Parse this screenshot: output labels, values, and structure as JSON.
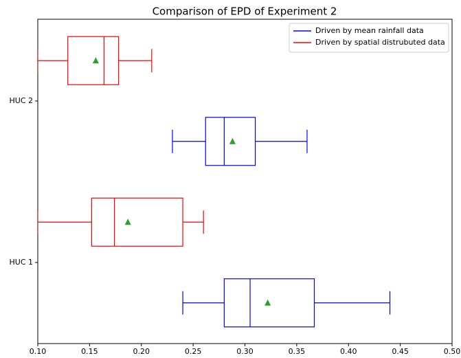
{
  "chart_data": {
    "type": "boxplot",
    "title": "Comparison of EPD of Experiment 2",
    "categories": [
      "HUC 1",
      "HUC 2"
    ],
    "series": [
      {
        "name": "Driven by mean rainfall data",
        "color": "#0000ff",
        "values": [
          {
            "whislo": 0.24,
            "q1": 0.28,
            "med": 0.305,
            "q3": 0.367,
            "whishi": 0.44,
            "mean": 0.322
          },
          {
            "whislo": 0.23,
            "q1": 0.262,
            "med": 0.28,
            "q3": 0.31,
            "whishi": 0.36,
            "mean": 0.288
          }
        ]
      },
      {
        "name": "Driven by spatial distrubuted data",
        "color": "#ff0000",
        "values": [
          {
            "whislo": 0.1,
            "q1": 0.152,
            "med": 0.174,
            "q3": 0.24,
            "whishi": 0.26,
            "mean": 0.187
          },
          {
            "whislo": 0.1,
            "q1": 0.129,
            "med": 0.164,
            "q3": 0.178,
            "whishi": 0.21,
            "mean": 0.156
          }
        ]
      }
    ],
    "mean_color": "#2ca02c",
    "xlim": [
      0.1,
      0.5
    ],
    "xticks": [
      {
        "value": 0.1,
        "label": "0.10"
      },
      0.15,
      {
        "value": 0.2,
        "label": "0.20"
      },
      0.25,
      {
        "value": 0.3,
        "label": "0.30"
      },
      0.35,
      {
        "value": 0.4,
        "label": "0.40"
      },
      0.45,
      {
        "value": 0.5,
        "label": "0.50"
      }
    ],
    "legend": "upper right"
  }
}
